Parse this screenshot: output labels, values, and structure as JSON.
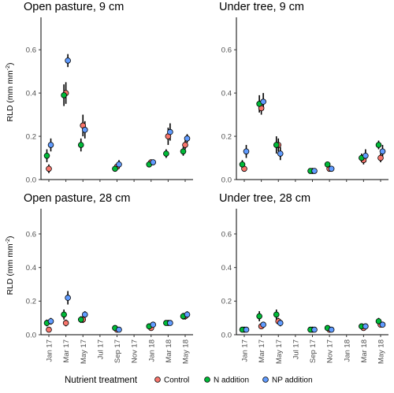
{
  "legend": {
    "title": "Nutrient treatment",
    "items": [
      {
        "label": "Control",
        "color": "#F8766D"
      },
      {
        "label": "N addition",
        "color": "#00BA38"
      },
      {
        "label": "NP addition",
        "color": "#619CFF"
      }
    ]
  },
  "chart_data": [
    {
      "type": "scatter",
      "title": "Open pasture, 9 cm",
      "ylabel": "RLD (mm mm",
      "ylabel_sup": "-2",
      "ylabel_close": ")",
      "ylim": [
        0,
        0.75
      ],
      "yticks": [
        "0.0",
        "0.2",
        "0.4",
        "0.6"
      ],
      "x_categories": [
        "Jan 17",
        "Mar 17",
        "May 17",
        "Jul 17",
        "Sep 17",
        "Nov 17",
        "Jan 18",
        "Mar 18",
        "May 18"
      ],
      "series": [
        {
          "name": "Control",
          "points": [
            {
              "x": "Jan 17",
              "y": 0.05,
              "err": 0.02
            },
            {
              "x": "Mar 17",
              "y": 0.4,
              "err": 0.05
            },
            {
              "x": "May 17",
              "y": 0.25,
              "err": 0.05
            },
            {
              "x": "Sep 17",
              "y": 0.06,
              "err": 0.01
            },
            {
              "x": "Jan 18",
              "y": 0.08,
              "err": 0.01
            },
            {
              "x": "Mar 18",
              "y": 0.2,
              "err": 0.04
            },
            {
              "x": "May 18",
              "y": 0.16,
              "err": 0.02
            }
          ]
        },
        {
          "name": "N addition",
          "points": [
            {
              "x": "Jan 17",
              "y": 0.11,
              "err": 0.03
            },
            {
              "x": "Mar 17",
              "y": 0.39,
              "err": 0.05
            },
            {
              "x": "May 17",
              "y": 0.16,
              "err": 0.03
            },
            {
              "x": "Sep 17",
              "y": 0.05,
              "err": 0.01
            },
            {
              "x": "Jan 18",
              "y": 0.07,
              "err": 0.01
            },
            {
              "x": "Mar 18",
              "y": 0.12,
              "err": 0.02
            },
            {
              "x": "May 18",
              "y": 0.13,
              "err": 0.02
            }
          ]
        },
        {
          "name": "NP addition",
          "points": [
            {
              "x": "Jan 17",
              "y": 0.16,
              "err": 0.03
            },
            {
              "x": "Mar 17",
              "y": 0.55,
              "err": 0.03
            },
            {
              "x": "May 17",
              "y": 0.23,
              "err": 0.04
            },
            {
              "x": "Sep 17",
              "y": 0.07,
              "err": 0.02
            },
            {
              "x": "Jan 18",
              "y": 0.08,
              "err": 0.01
            },
            {
              "x": "Mar 18",
              "y": 0.22,
              "err": 0.04
            },
            {
              "x": "May 18",
              "y": 0.19,
              "err": 0.02
            }
          ]
        }
      ]
    },
    {
      "type": "scatter",
      "title": "Under tree, 9 cm",
      "ylabel": "",
      "ylim": [
        0,
        0.75
      ],
      "yticks": [
        "0.0",
        "0.2",
        "0.4",
        "0.6"
      ],
      "x_categories": [
        "Jan 17",
        "Mar 17",
        "May 17",
        "Jul 17",
        "Sep 17",
        "Nov 17",
        "Jan 18",
        "Mar 18",
        "May 18"
      ],
      "series": [
        {
          "name": "Control",
          "points": [
            {
              "x": "Jan 17",
              "y": 0.05,
              "err": 0.01
            },
            {
              "x": "Mar 17",
              "y": 0.33,
              "err": 0.03
            },
            {
              "x": "May 17",
              "y": 0.16,
              "err": 0.03
            },
            {
              "x": "Sep 17",
              "y": 0.04,
              "err": 0.01
            },
            {
              "x": "Nov 17",
              "y": 0.05,
              "err": 0.01
            },
            {
              "x": "Mar 18",
              "y": 0.09,
              "err": 0.02
            },
            {
              "x": "May 18",
              "y": 0.1,
              "err": 0.02
            }
          ]
        },
        {
          "name": "N addition",
          "points": [
            {
              "x": "Jan 17",
              "y": 0.07,
              "err": 0.02
            },
            {
              "x": "Mar 17",
              "y": 0.35,
              "err": 0.04
            },
            {
              "x": "May 17",
              "y": 0.16,
              "err": 0.04
            },
            {
              "x": "Sep 17",
              "y": 0.04,
              "err": 0.01
            },
            {
              "x": "Nov 17",
              "y": 0.07,
              "err": 0.01
            },
            {
              "x": "Mar 18",
              "y": 0.1,
              "err": 0.02
            },
            {
              "x": "May 18",
              "y": 0.16,
              "err": 0.02
            }
          ]
        },
        {
          "name": "NP addition",
          "points": [
            {
              "x": "Jan 17",
              "y": 0.13,
              "err": 0.03
            },
            {
              "x": "Mar 17",
              "y": 0.36,
              "err": 0.04
            },
            {
              "x": "May 17",
              "y": 0.12,
              "err": 0.03
            },
            {
              "x": "Sep 17",
              "y": 0.04,
              "err": 0.01
            },
            {
              "x": "Nov 17",
              "y": 0.05,
              "err": 0.01
            },
            {
              "x": "Mar 18",
              "y": 0.11,
              "err": 0.03
            },
            {
              "x": "May 18",
              "y": 0.13,
              "err": 0.03
            }
          ]
        }
      ]
    },
    {
      "type": "scatter",
      "title": "Open pasture, 28 cm",
      "ylabel": "RLD (mm mm",
      "ylabel_sup": "-2",
      "ylabel_close": ")",
      "ylim": [
        0,
        0.75
      ],
      "yticks": [
        "0.0",
        "0.2",
        "0.4",
        "0.6"
      ],
      "x_categories": [
        "Jan 17",
        "Mar 17",
        "May 17",
        "Jul 17",
        "Sep 17",
        "Nov 17",
        "Jan 18",
        "Mar 18",
        "May 18"
      ],
      "series": [
        {
          "name": "Control",
          "points": [
            {
              "x": "Jan 17",
              "y": 0.03,
              "err": 0.01
            },
            {
              "x": "Mar 17",
              "y": 0.07,
              "err": 0.02
            },
            {
              "x": "May 17",
              "y": 0.09,
              "err": 0.02
            },
            {
              "x": "Sep 17",
              "y": 0.03,
              "err": 0.01
            },
            {
              "x": "Jan 18",
              "y": 0.04,
              "err": 0.01
            },
            {
              "x": "Mar 18",
              "y": 0.07,
              "err": 0.01
            },
            {
              "x": "May 18",
              "y": 0.11,
              "err": 0.02
            }
          ]
        },
        {
          "name": "N addition",
          "points": [
            {
              "x": "Jan 17",
              "y": 0.07,
              "err": 0.02
            },
            {
              "x": "Mar 17",
              "y": 0.12,
              "err": 0.03
            },
            {
              "x": "May 17",
              "y": 0.09,
              "err": 0.02
            },
            {
              "x": "Sep 17",
              "y": 0.04,
              "err": 0.01
            },
            {
              "x": "Jan 18",
              "y": 0.05,
              "err": 0.01
            },
            {
              "x": "Mar 18",
              "y": 0.07,
              "err": 0.01
            },
            {
              "x": "May 18",
              "y": 0.11,
              "err": 0.02
            }
          ]
        },
        {
          "name": "NP addition",
          "points": [
            {
              "x": "Jan 17",
              "y": 0.08,
              "err": 0.02
            },
            {
              "x": "Mar 17",
              "y": 0.22,
              "err": 0.04
            },
            {
              "x": "May 17",
              "y": 0.12,
              "err": 0.02
            },
            {
              "x": "Sep 17",
              "y": 0.03,
              "err": 0.01
            },
            {
              "x": "Jan 18",
              "y": 0.06,
              "err": 0.01
            },
            {
              "x": "Mar 18",
              "y": 0.07,
              "err": 0.01
            },
            {
              "x": "May 18",
              "y": 0.12,
              "err": 0.02
            }
          ]
        }
      ]
    },
    {
      "type": "scatter",
      "title": "Under tree, 28 cm",
      "ylabel": "",
      "ylim": [
        0,
        0.75
      ],
      "yticks": [
        "0.0",
        "0.2",
        "0.4",
        "0.6"
      ],
      "x_categories": [
        "Jan 17",
        "Mar 17",
        "May 17",
        "Jul 17",
        "Sep 17",
        "Nov 17",
        "Jan 18",
        "Mar 18",
        "May 18"
      ],
      "series": [
        {
          "name": "Control",
          "points": [
            {
              "x": "Jan 17",
              "y": 0.03,
              "err": 0.01
            },
            {
              "x": "Mar 17",
              "y": 0.05,
              "err": 0.01
            },
            {
              "x": "May 17",
              "y": 0.08,
              "err": 0.02
            },
            {
              "x": "Sep 17",
              "y": 0.03,
              "err": 0.01
            },
            {
              "x": "Nov 17",
              "y": 0.03,
              "err": 0.01
            },
            {
              "x": "Mar 18",
              "y": 0.04,
              "err": 0.01
            },
            {
              "x": "May 18",
              "y": 0.06,
              "err": 0.01
            }
          ]
        },
        {
          "name": "N addition",
          "points": [
            {
              "x": "Jan 17",
              "y": 0.03,
              "err": 0.01
            },
            {
              "x": "Mar 17",
              "y": 0.11,
              "err": 0.03
            },
            {
              "x": "May 17",
              "y": 0.12,
              "err": 0.03
            },
            {
              "x": "Sep 17",
              "y": 0.03,
              "err": 0.01
            },
            {
              "x": "Nov 17",
              "y": 0.04,
              "err": 0.01
            },
            {
              "x": "Mar 18",
              "y": 0.05,
              "err": 0.01
            },
            {
              "x": "May 18",
              "y": 0.08,
              "err": 0.02
            }
          ]
        },
        {
          "name": "NP addition",
          "points": [
            {
              "x": "Jan 17",
              "y": 0.03,
              "err": 0.01
            },
            {
              "x": "Mar 17",
              "y": 0.06,
              "err": 0.01
            },
            {
              "x": "May 17",
              "y": 0.07,
              "err": 0.02
            },
            {
              "x": "Sep 17",
              "y": 0.03,
              "err": 0.01
            },
            {
              "x": "Nov 17",
              "y": 0.03,
              "err": 0.01
            },
            {
              "x": "Mar 18",
              "y": 0.05,
              "err": 0.01
            },
            {
              "x": "May 18",
              "y": 0.06,
              "err": 0.01
            }
          ]
        }
      ]
    }
  ]
}
